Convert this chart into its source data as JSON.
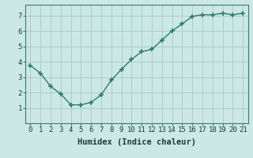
{
  "x": [
    0,
    1,
    2,
    3,
    4,
    5,
    6,
    7,
    8,
    9,
    10,
    11,
    12,
    13,
    14,
    15,
    16,
    17,
    18,
    19,
    20,
    21
  ],
  "y": [
    3.75,
    3.25,
    2.4,
    1.9,
    1.2,
    1.2,
    1.35,
    1.85,
    2.8,
    3.5,
    4.15,
    4.65,
    4.8,
    5.4,
    6.0,
    6.45,
    6.95,
    7.05,
    7.05,
    7.15,
    7.05,
    7.15
  ],
  "line_color": "#2e7d6e",
  "marker": "+",
  "marker_size": 5,
  "marker_lw": 1.2,
  "bg_color": "#cce8e4",
  "grid_color": "#aacdc8",
  "xlabel": "Humidex (Indice chaleur)",
  "xlim": [
    -0.5,
    21.5
  ],
  "ylim": [
    0.0,
    7.7
  ],
  "yticks": [
    1,
    2,
    3,
    4,
    5,
    6,
    7
  ],
  "xticks": [
    0,
    1,
    2,
    3,
    4,
    5,
    6,
    7,
    8,
    9,
    10,
    11,
    12,
    13,
    14,
    15,
    16,
    17,
    18,
    19,
    20,
    21
  ],
  "xlabel_fontsize": 7.5,
  "tick_fontsize": 6.5,
  "line_width": 1.0,
  "spine_color": "#3d7a70"
}
